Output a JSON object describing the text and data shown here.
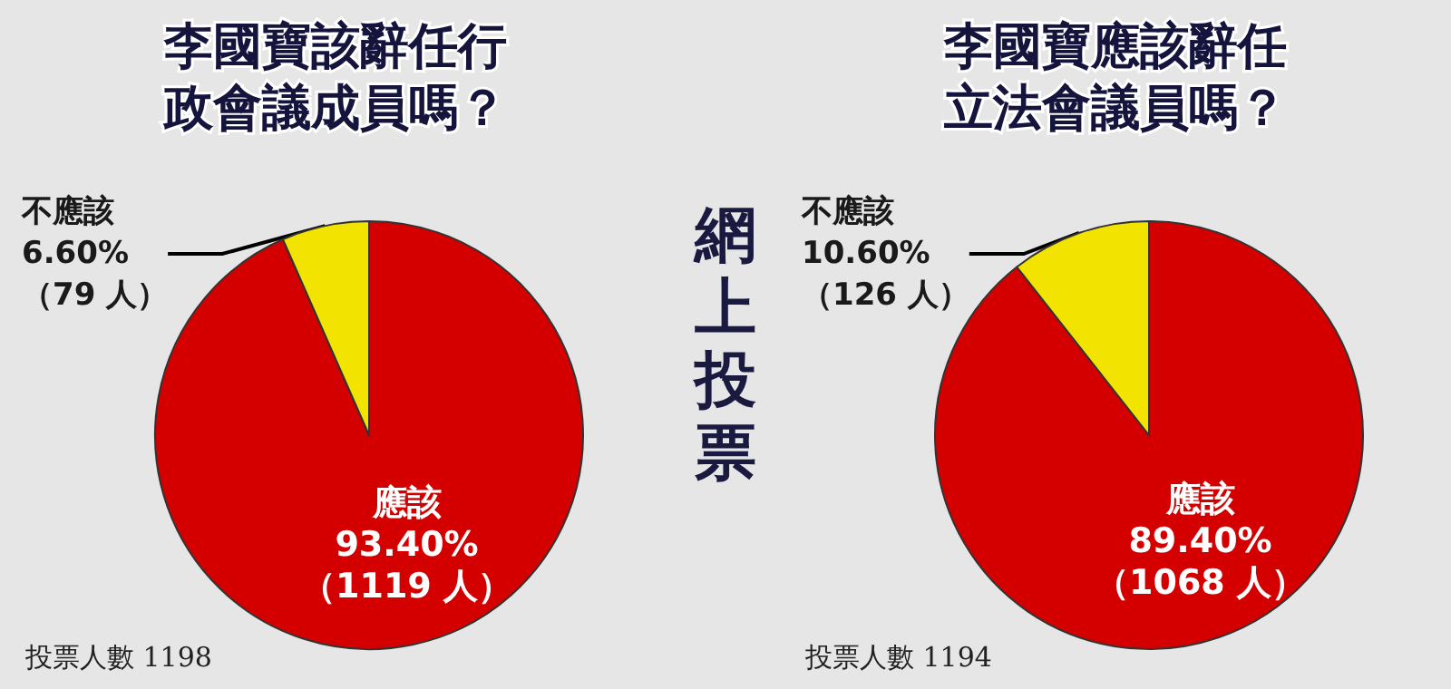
{
  "chart_data": [
    {
      "type": "pie",
      "title": "李國寶該辭任行政會議成員嗎？",
      "categories": [
        "應該",
        "不應該"
      ],
      "values": [
        93.4,
        6.6
      ],
      "colors": [
        "#d40000",
        "#f2e400"
      ],
      "value_labels": [
        "93.40%\n（1119 人）",
        "6.60%\n（79 人）"
      ],
      "annotations": [
        "投票人數 1198",
        "網上投票"
      ],
      "legend": false
    },
    {
      "type": "pie",
      "title": "李國寶應該辭任立法會議員嗎？",
      "categories": [
        "應該",
        "不應該"
      ],
      "values": [
        89.4,
        10.6
      ],
      "colors": [
        "#d40000",
        "#f2e400"
      ],
      "value_labels": [
        "89.40%\n（1068 人）",
        "10.60%\n（126 人）"
      ],
      "annotations": [
        "投票人數 1194"
      ],
      "legend": false
    }
  ]
}
